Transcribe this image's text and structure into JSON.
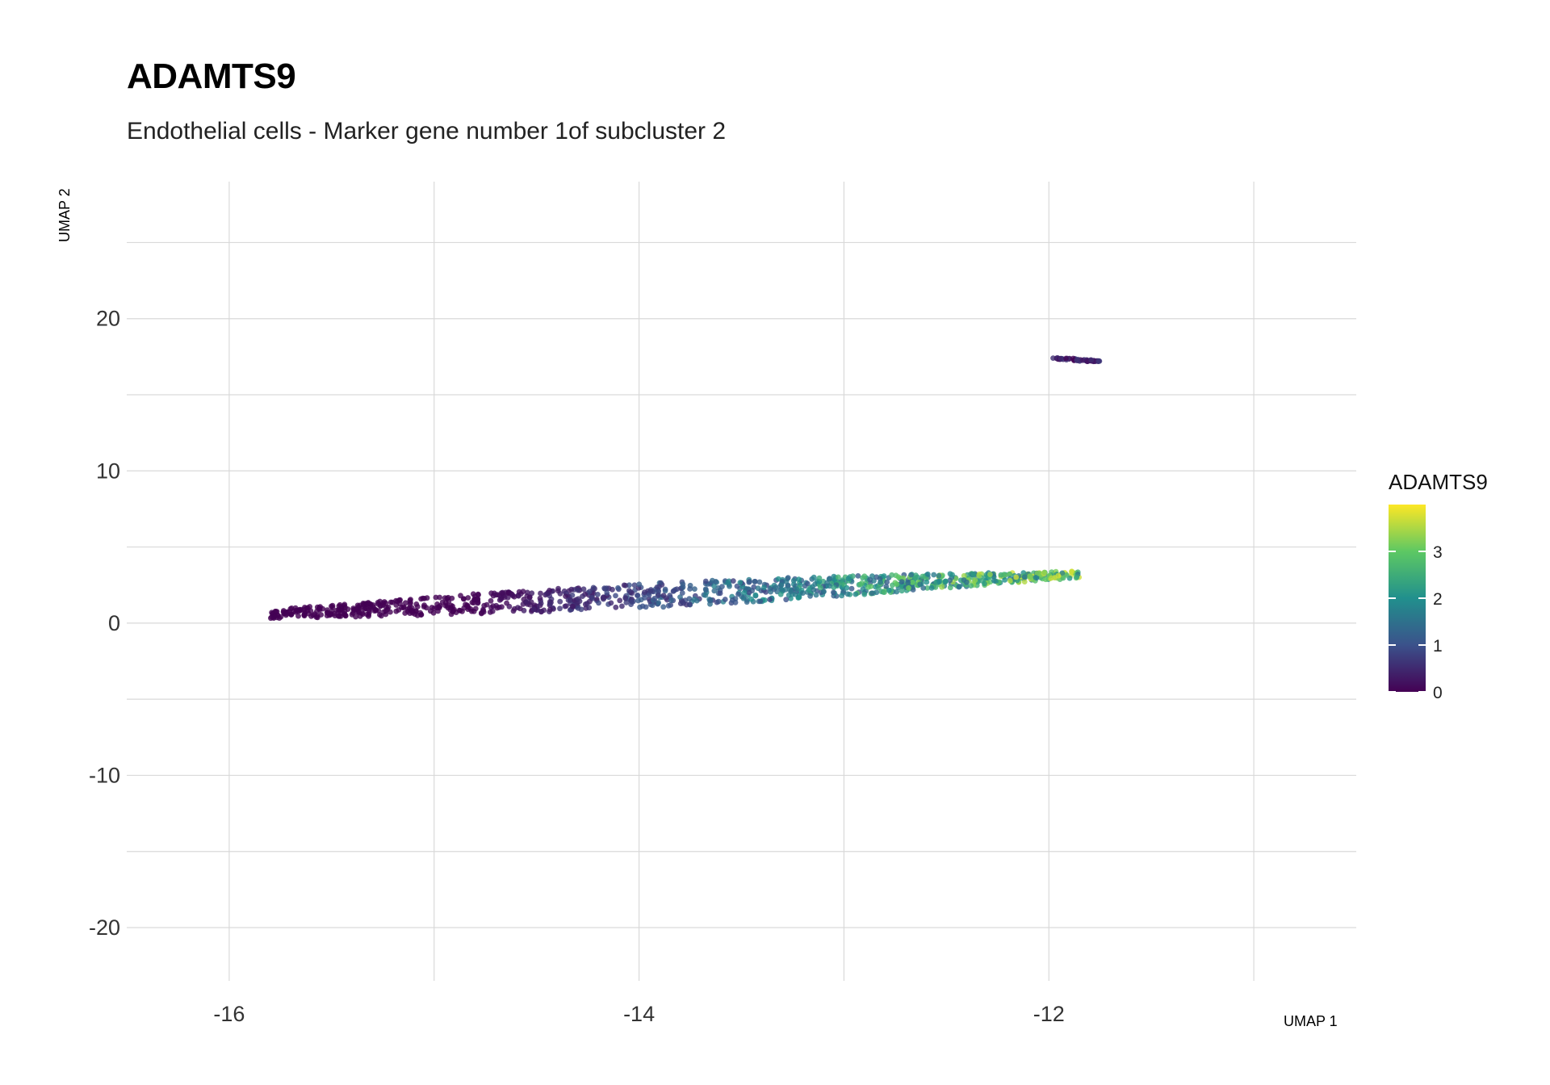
{
  "chart_data": {
    "type": "scatter",
    "title": "ADAMTS9",
    "subtitle": "Endothelial cells - Marker gene number 1of subcluster 2",
    "xlabel": "UMAP 1",
    "ylabel": "UMAP 2",
    "xlim": [
      -16.5,
      -10.5
    ],
    "ylim": [
      -23.5,
      29
    ],
    "x_ticks": [
      -16,
      -14,
      -12
    ],
    "y_ticks": [
      -20,
      -10,
      0,
      10,
      20
    ],
    "grid": true,
    "legend": {
      "title": "ADAMTS9",
      "placement": "right",
      "ticks": [
        0,
        1,
        2,
        3
      ],
      "range": [
        0,
        4
      ],
      "colors": [
        "#440154",
        "#3b528b",
        "#21908d",
        "#5dc863",
        "#fde725"
      ]
    },
    "clusters": [
      {
        "label": "main-band",
        "x_range": [
          -15.8,
          -11.85
        ],
        "y_start": 0.6,
        "y_end": 3.2,
        "spread": 1.6,
        "expression_range": [
          0,
          3.7
        ],
        "n": 1100
      },
      {
        "label": "upper-island",
        "x_range": [
          -11.98,
          -11.75
        ],
        "y_start": 17.4,
        "y_end": 17.2,
        "spread": 0.15,
        "expression_range": [
          0,
          0.8
        ],
        "n": 60
      }
    ]
  }
}
